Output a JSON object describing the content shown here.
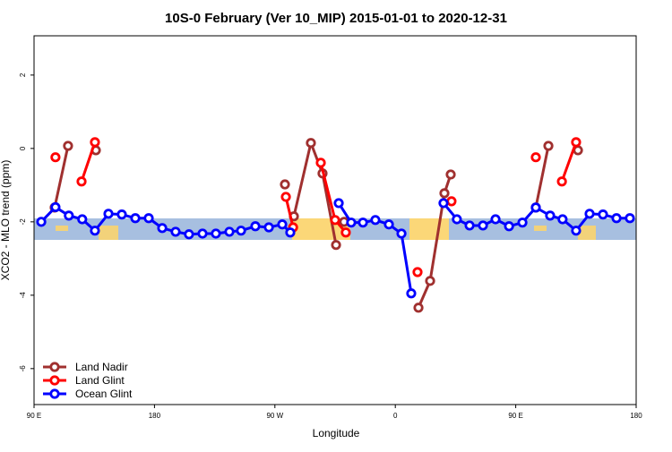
{
  "chart_data": {
    "type": "line",
    "title": "10S-0 February (Ver 10_MIP)   2015-01-01 to 2020-12-31",
    "x_label": "Longitude",
    "y_label": "XCO2 - MLO trend (ppm)",
    "xlim": [
      90,
      540
    ],
    "ylim": [
      -6.98,
      3.07
    ],
    "xticks": [
      {
        "value": 90,
        "label": "90 E"
      },
      180,
      {
        "value": 270,
        "label": "90 W"
      },
      {
        "value": 360,
        "label": "0"
      },
      {
        "value": 450,
        "label": "90 E"
      },
      {
        "value": 540,
        "label": "180"
      }
    ],
    "yticks": [
      -6,
      -4,
      -2,
      0,
      2
    ],
    "legend": "bottom-left",
    "series": [
      {
        "name": "Land Nadir",
        "color": "#a0302f",
        "x": [
          105.4,
          115.4,
          null,
          136.2,
          null,
          277.5,
          null,
          284.2,
          296.9,
          305.6,
          315.7,
          null,
          321.7,
          null,
          377.3,
          386,
          396.7,
          401.4,
          null,
          465,
          474.4,
          null,
          496.5
        ],
        "values": [
          -1.61,
          0.07,
          null,
          -0.05,
          null,
          -0.98,
          null,
          -1.85,
          0.15,
          -0.68,
          -2.63,
          null,
          -2.0,
          null,
          -4.34,
          -3.61,
          -1.22,
          -0.71,
          null,
          -1.61,
          0.07,
          null,
          -0.05
        ]
      },
      {
        "name": "Land Glint",
        "color": "#ff0000",
        "x": [
          106,
          null,
          125.5,
          135.5,
          null,
          278.2,
          283.6,
          null,
          304.3,
          315,
          323,
          null,
          376.6,
          null,
          402,
          null,
          465,
          null,
          484.5,
          495.1
        ],
        "values": [
          -0.24,
          null,
          -0.9,
          0.17,
          null,
          -1.32,
          -2.15,
          null,
          -0.39,
          -1.95,
          -2.29,
          null,
          -3.37,
          null,
          -1.44,
          null,
          -0.24,
          null,
          -0.9,
          0.17
        ]
      },
      {
        "name": "Ocean Glint",
        "color": "#0000ff",
        "x": [
          95.4,
          106,
          116,
          126,
          135.5,
          145.6,
          155.6,
          165.7,
          175.7,
          185.8,
          195.8,
          205.8,
          215.9,
          225.9,
          236,
          244.7,
          255.4,
          265.5,
          275.5,
          281.5,
          null,
          317.7,
          327,
          335.8,
          345.1,
          355.2,
          364.6,
          371.9,
          null,
          396,
          406,
          415.5,
          425.5,
          434.9,
          445,
          455,
          465,
          475.7,
          485,
          495.1,
          505.2,
          515.2,
          525.3,
          535.3
        ],
        "values": [
          -2.0,
          -1.6,
          -1.83,
          -1.93,
          -2.24,
          -1.78,
          -1.8,
          -1.9,
          -1.9,
          -2.17,
          -2.27,
          -2.34,
          -2.32,
          -2.32,
          -2.27,
          -2.24,
          -2.12,
          -2.15,
          -2.07,
          -2.29,
          null,
          -1.49,
          -2.02,
          -2.02,
          -1.95,
          -2.07,
          -2.32,
          -3.95,
          null,
          -1.49,
          -1.93,
          -2.1,
          -2.1,
          -1.93,
          -2.12,
          -2.02,
          -1.61,
          -1.83,
          -1.93,
          -2.24,
          -1.78,
          -1.8,
          -1.9,
          -1.9
        ]
      }
    ]
  }
}
